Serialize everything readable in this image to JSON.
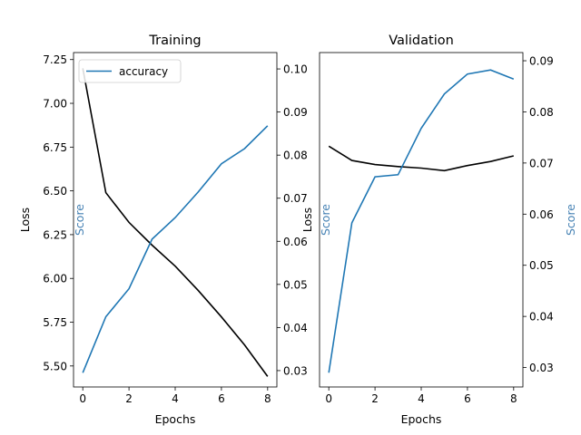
{
  "chart_data": [
    {
      "type": "line",
      "title": "Training",
      "xlabel": "Epochs",
      "ylabel": "Loss",
      "y2label": "Score",
      "x": [
        0,
        1,
        2,
        3,
        4,
        5,
        6,
        7,
        8
      ],
      "xticks": [
        "0",
        "2",
        "4",
        "6",
        "8"
      ],
      "xlim": [
        -0.4,
        8.4
      ],
      "ylim": [
        5.38,
        7.29
      ],
      "yticks": [
        "5.50",
        "5.75",
        "6.00",
        "6.25",
        "6.50",
        "6.75",
        "7.00",
        "7.25"
      ],
      "y2lim": [
        0.0262,
        0.1038
      ],
      "y2ticks": [
        "0.03",
        "0.04",
        "0.05",
        "0.06",
        "0.07",
        "0.08",
        "0.09",
        "0.10"
      ],
      "legend": {
        "label": "accuracy",
        "placement": "upper-left"
      },
      "loss": [
        7.2,
        6.49,
        6.32,
        6.19,
        6.07,
        5.93,
        5.78,
        5.62,
        5.44
      ],
      "score": [
        0.0295,
        0.0425,
        0.049,
        0.0605,
        0.0655,
        0.0715,
        0.078,
        0.0815,
        0.0868
      ]
    },
    {
      "type": "line",
      "title": "Validation",
      "xlabel": "Epochs",
      "ylabel": "Loss",
      "y2label": "Score",
      "x": [
        0,
        1,
        2,
        3,
        4,
        5,
        6,
        7,
        8
      ],
      "xticks": [
        "0",
        "2",
        "4",
        "6",
        "8"
      ],
      "xlim": [
        -0.4,
        8.4
      ],
      "ylim": [
        0.0262,
        0.0916
      ],
      "y2lim": [
        0.0262,
        0.0916
      ],
      "y2ticks": [
        "0.03",
        "0.04",
        "0.05",
        "0.06",
        "0.07",
        "0.08",
        "0.09"
      ],
      "loss": [
        0.0733,
        0.0705,
        0.0697,
        0.0693,
        0.069,
        0.0685,
        0.0695,
        0.0703,
        0.0714
      ],
      "score": [
        0.029,
        0.0583,
        0.0673,
        0.0677,
        0.0768,
        0.0835,
        0.0874,
        0.0882,
        0.0864
      ]
    }
  ],
  "colors": {
    "loss": "#000000",
    "score": "#1f77b4",
    "score_label": "#4682b4",
    "axis": "#000000"
  }
}
